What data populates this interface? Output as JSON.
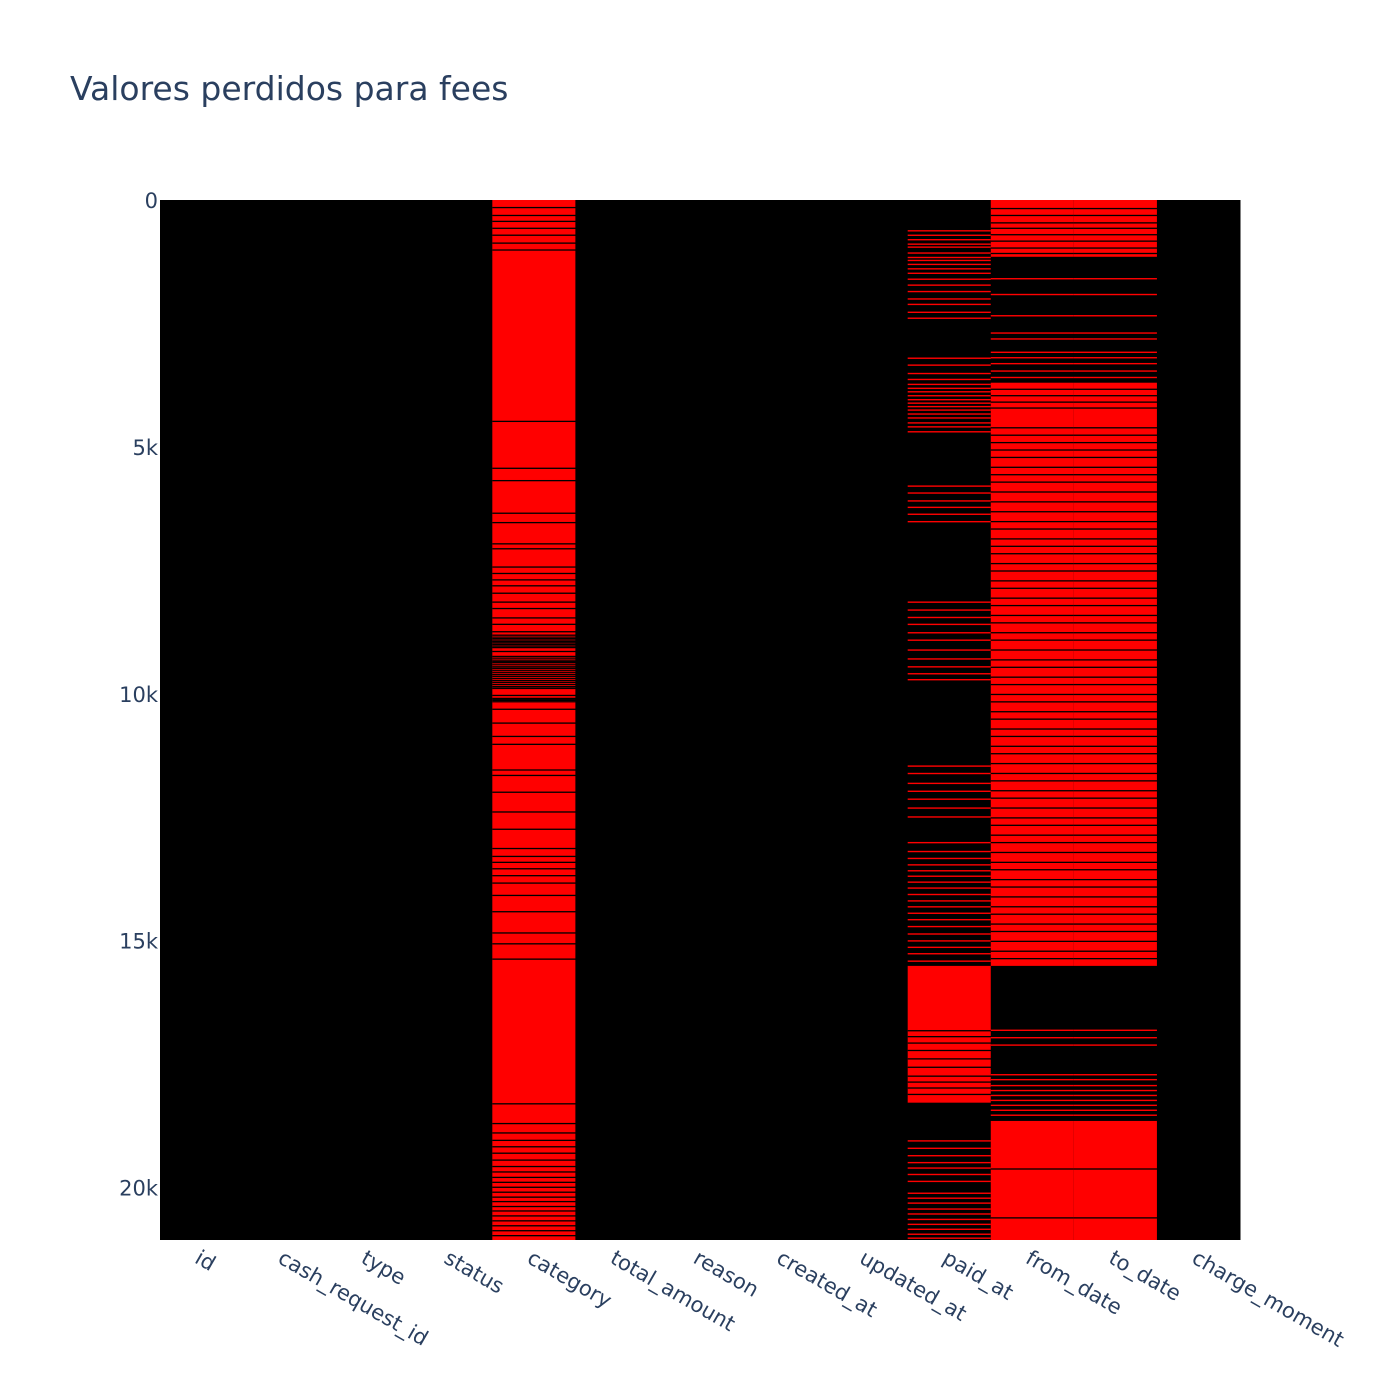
{
  "chart_data": {
    "type": "heatmap",
    "title": "Valores perdidos para fees",
    "columns": [
      "id",
      "cash_request_id",
      "type",
      "status",
      "category",
      "total_amount",
      "reason",
      "created_at",
      "updated_at",
      "paid_at",
      "from_date",
      "to_date",
      "charge_moment"
    ],
    "y_range": [
      0,
      21061
    ],
    "y_ticks": [
      {
        "value": 0,
        "label": "0"
      },
      {
        "value": 5000,
        "label": "5k"
      },
      {
        "value": 10000,
        "label": "10k"
      },
      {
        "value": 15000,
        "label": "15k"
      },
      {
        "value": 20000,
        "label": "20k"
      }
    ],
    "value_legend": {
      "missing": "#ff0000",
      "present": "#000000"
    },
    "missing_ranges": {
      "category": [
        [
          0,
          21061
        ]
      ],
      "paid_at": [
        [
          15510,
          18280
        ]
      ],
      "from_date": [
        [
          0,
          1150
        ],
        [
          3700,
          15510
        ],
        [
          18650,
          21061
        ]
      ],
      "to_date": [
        [
          0,
          1150
        ],
        [
          3700,
          15510
        ],
        [
          18650,
          21061
        ]
      ]
    },
    "present_rows": {
      "category": [
        140,
        300,
        420,
        560,
        700,
        860,
        1000,
        4470,
        5420,
        5670,
        6330,
        6520,
        6950,
        7050,
        7420,
        7550,
        7680,
        7800,
        7950,
        8130,
        8260,
        8450,
        8580,
        8730,
        8800,
        8930,
        9050,
        9130,
        9230,
        9340,
        9470,
        9600,
        9720,
        9870,
        10020,
        10080,
        10300,
        10580,
        10850,
        11010,
        11530,
        11640,
        11980,
        12380,
        12730,
        13120,
        13280,
        13400,
        13530,
        13670,
        13820,
        14070,
        14400,
        14830,
        15050,
        15360,
        18290,
        18690,
        18880,
        19030,
        19160,
        19290,
        19430,
        19560,
        19670,
        19780,
        19880,
        19980,
        20080,
        20180,
        20270,
        20370,
        20460,
        20560,
        20660,
        20760,
        20860,
        20960
      ],
      "paid_at": [
        16810,
        16930,
        17060,
        17210,
        17380,
        17550,
        17730,
        17850,
        17970,
        18100
      ],
      "from_date": [
        160,
        300,
        450,
        560,
        690,
        820,
        960,
        1070,
        3820,
        3950,
        4080,
        4200,
        4600,
        4750,
        4900,
        5050,
        5200,
        5400,
        5550,
        5700,
        5900,
        6100,
        6300,
        6500,
        6650,
        6850,
        7000,
        7150,
        7350,
        7500,
        7700,
        7850,
        8050,
        8200,
        8400,
        8550,
        8750,
        8900,
        9100,
        9300,
        9450,
        9650,
        9800,
        10000,
        10150,
        10350,
        10500,
        10700,
        10850,
        11050,
        11200,
        11400,
        11600,
        11750,
        11950,
        12100,
        12300,
        12500,
        12650,
        12850,
        13000,
        13200,
        13400,
        13550,
        13750,
        13900,
        14100,
        14300,
        14450,
        14650,
        14800,
        15000,
        15200,
        15350,
        19610,
        20600
      ],
      "to_date": [
        160,
        300,
        450,
        560,
        690,
        820,
        960,
        1070,
        3820,
        3950,
        4080,
        4200,
        4600,
        4750,
        4900,
        5050,
        5200,
        5400,
        5550,
        5700,
        5900,
        6100,
        6300,
        6500,
        6650,
        6850,
        7000,
        7150,
        7350,
        7500,
        7700,
        7850,
        8050,
        8200,
        8400,
        8550,
        8750,
        8900,
        9100,
        9300,
        9450,
        9650,
        9800,
        10000,
        10150,
        10350,
        10500,
        10700,
        10850,
        11050,
        11200,
        11400,
        11600,
        11750,
        11950,
        12100,
        12300,
        12500,
        12650,
        12850,
        13000,
        13200,
        13400,
        13550,
        13750,
        13900,
        14100,
        14300,
        14450,
        14650,
        14800,
        15000,
        15200,
        15350,
        19610,
        20600
      ]
    },
    "dense_rows": {
      "category": [
        [
          8840,
          9050,
          30
        ],
        [
          9240,
          9900,
          40
        ],
        [
          10100,
          10150,
          25
        ]
      ],
      "paid_at": [
        [
          4750,
          5680,
          35
        ],
        [
          6640,
          8000,
          35
        ],
        [
          9750,
          11320,
          35
        ]
      ]
    },
    "sparse_missing": {
      "paid_at": [
        610,
        700,
        790,
        880,
        940,
        1060,
        1150,
        1210,
        1290,
        1380,
        1470,
        1590,
        1710,
        1840,
        1990,
        2100,
        2260,
        2380,
        3190,
        3330,
        3500,
        3620,
        3720,
        3800,
        3870,
        3950,
        4030,
        4100,
        4170,
        4240,
        4320,
        4400,
        4500,
        4580,
        4680,
        5780,
        5920,
        6080,
        6210,
        6350,
        6500,
        8130,
        8290,
        8440,
        8580,
        8750,
        8900,
        9100,
        9280,
        9440,
        9580,
        9700,
        11450,
        11600,
        11800,
        11960,
        12120,
        12300,
        12480,
        13000,
        13180,
        13320,
        13450,
        13570,
        13680,
        13800,
        13920,
        14050,
        14180,
        14300,
        14430,
        14560,
        14700,
        14850,
        14990,
        15120,
        15250,
        15400,
        19040,
        19190,
        19340,
        19480,
        19590,
        19720,
        19860,
        20100,
        20200,
        20300,
        20420,
        20520,
        20630,
        20730,
        20830,
        20930,
        21010
      ],
      "from_date": [
        1580,
        1900,
        2330,
        2680,
        2800,
        3070,
        3180,
        3300,
        3450,
        3580,
        16800,
        16950,
        17100,
        17700,
        17800,
        17920,
        18020,
        18120,
        18220,
        18320,
        18420,
        18520
      ],
      "to_date": [
        1580,
        1900,
        2330,
        2680,
        2800,
        3070,
        3180,
        3300,
        3450,
        3580,
        16800,
        16950,
        17100,
        17700,
        17800,
        17920,
        18020,
        18120,
        18220,
        18320,
        18420,
        18520
      ]
    }
  }
}
